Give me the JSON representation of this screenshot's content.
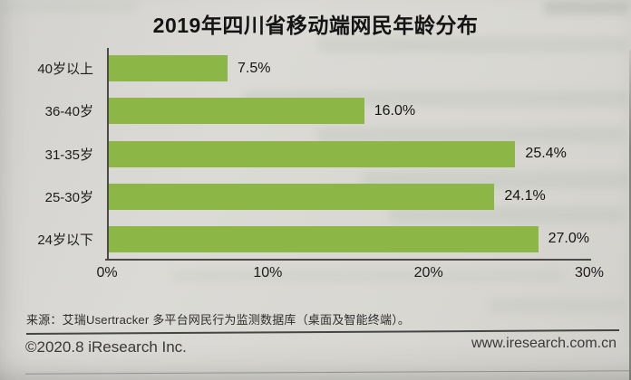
{
  "page_title": "2019年四川省移动端网民年龄分布",
  "chart_data": {
    "type": "bar",
    "orientation": "horizontal",
    "title": "2019年四川省移动端网民年龄分布",
    "categories": [
      "40岁以上",
      "36-40岁",
      "31-35岁",
      "25-30岁",
      "24岁以下"
    ],
    "values": [
      7.5,
      16.0,
      25.4,
      24.1,
      27.0
    ],
    "value_labels": [
      "7.5%",
      "16.0%",
      "25.4%",
      "24.1%",
      "27.0%"
    ],
    "x_ticks": [
      "0%",
      "10%",
      "20%",
      "30%"
    ],
    "x_tick_values": [
      0,
      10,
      20,
      30
    ],
    "xlim": [
      0,
      30
    ],
    "xlabel": "",
    "ylabel": "",
    "grid": false,
    "legend": false,
    "bar_color": "#8cb747"
  },
  "source_note": "来源：艾瑞Usertracker 多平台网民行为监测数据库（桌面及智能终端）。",
  "footer": {
    "copyright": "©2020.8 iResearch Inc.",
    "website": "www.iresearch.com.cn"
  }
}
